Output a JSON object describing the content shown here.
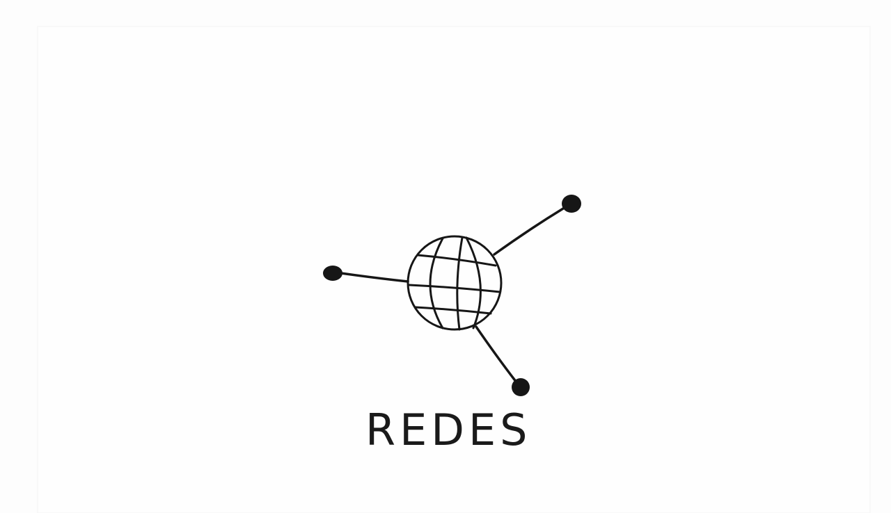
{
  "label": "REDES"
}
